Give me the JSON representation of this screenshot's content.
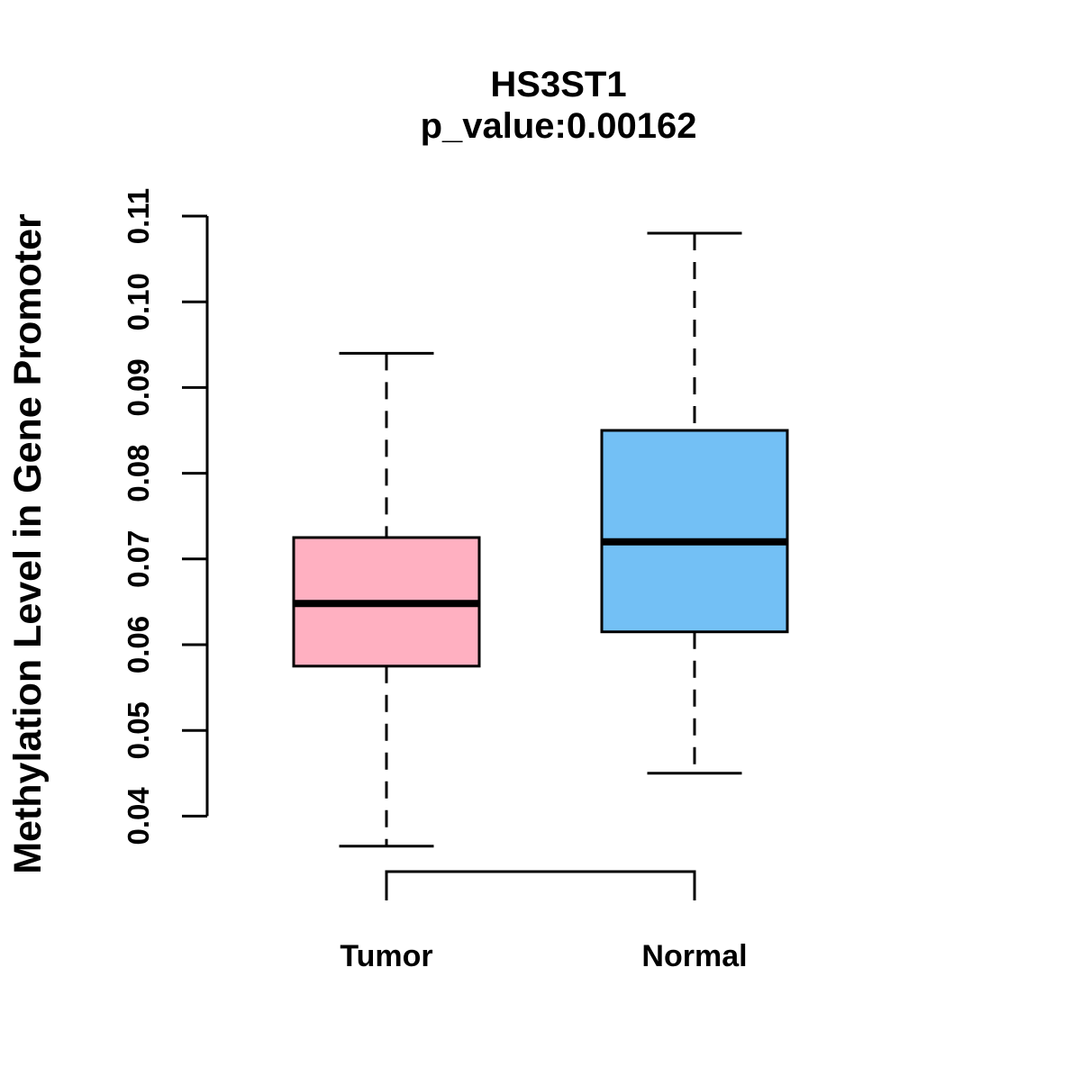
{
  "header": {
    "title": "HS3ST1",
    "subtitle": "p_value:0.00162"
  },
  "axes": {
    "y": {
      "label": "Methylation Level in Gene Promoter",
      "tick_labels": [
        "0.04",
        "0.05",
        "0.06",
        "0.07",
        "0.08",
        "0.09",
        "0.10",
        "0.11"
      ]
    },
    "x": {
      "categories": [
        "Tumor",
        "Normal"
      ]
    }
  },
  "colors": {
    "background": "#FFFFFF",
    "text": "#000000",
    "axis_stroke": "#000000",
    "box_stroke": "#000000",
    "tumor_fill": "#FFB0C1",
    "normal_fill": "#73C0F5"
  },
  "chart_data": {
    "type": "boxplot",
    "title": "HS3ST1",
    "subtitle": "p_value:0.00162",
    "ylabel": "Methylation Level in Gene Promoter",
    "xlabel": "",
    "categories": [
      "Tumor",
      "Normal"
    ],
    "yticks": [
      0.04,
      0.05,
      0.06,
      0.07,
      0.08,
      0.09,
      0.1,
      0.11
    ],
    "ylim": [
      0.0365,
      0.108
    ],
    "grid": false,
    "legend_position": "none",
    "series": [
      {
        "name": "Tumor",
        "fill": "#FFB0C1",
        "whisker_low": 0.0365,
        "q1": 0.0575,
        "median": 0.0648,
        "q3": 0.0725,
        "whisker_high": 0.094
      },
      {
        "name": "Normal",
        "fill": "#73C0F5",
        "whisker_low": 0.045,
        "q1": 0.0615,
        "median": 0.072,
        "q3": 0.085,
        "whisker_high": 0.108
      }
    ]
  }
}
